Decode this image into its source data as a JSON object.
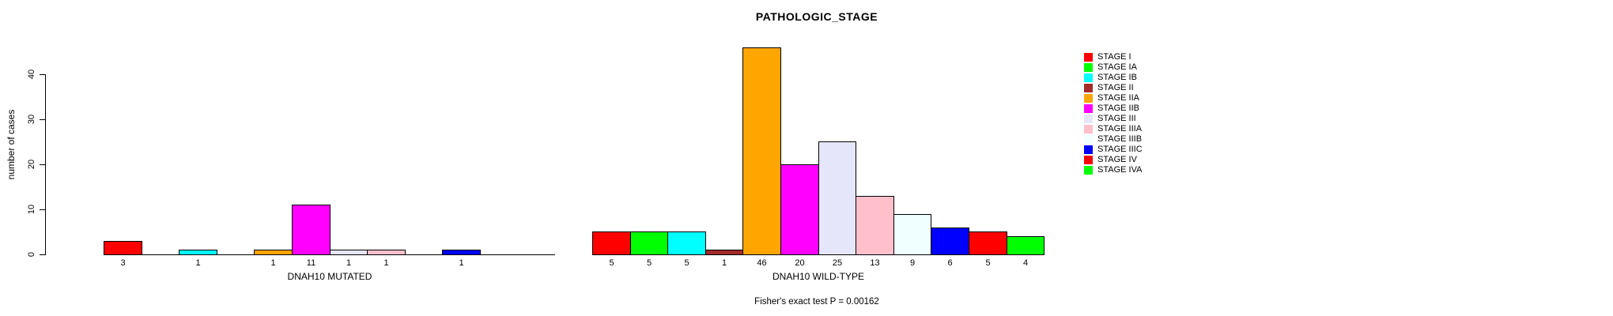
{
  "title": "PATHOLOGIC_STAGE",
  "footer": "Fisher's exact test P = 0.00162",
  "y_axis": {
    "label": "number of cases",
    "ticks": [
      0,
      10,
      20,
      30,
      40
    ]
  },
  "chart_data": {
    "type": "bar",
    "title": "PATHOLOGIC_STAGE",
    "ylabel": "number of cases",
    "ylim": [
      0,
      46
    ],
    "grid": false,
    "legend_position": "right",
    "categories": [
      "STAGE I",
      "STAGE IA",
      "STAGE IB",
      "STAGE II",
      "STAGE IIA",
      "STAGE IIB",
      "STAGE III",
      "STAGE IIIA",
      "STAGE IIIB",
      "STAGE IIIC",
      "STAGE IV",
      "STAGE IVA"
    ],
    "colors": [
      "#FF0000",
      "#00FF00",
      "#00FFFF",
      "#A52A2A",
      "#FFA500",
      "#FF00FF",
      "#E6E6FA",
      "#FFC0CB",
      "#F0FFFF",
      "#0000FF",
      "#FF0000",
      "#00FF00"
    ],
    "series": [
      {
        "name": "DNAH10 MUTATED",
        "values": [
          3,
          0,
          1,
          0,
          1,
          11,
          1,
          1,
          0,
          1,
          0,
          0
        ]
      },
      {
        "name": "DNAH10 WILD-TYPE",
        "values": [
          5,
          5,
          5,
          1,
          46,
          20,
          25,
          13,
          9,
          6,
          5,
          4
        ]
      }
    ],
    "annotation": "Fisher's exact test P = 0.00162"
  },
  "legend": {
    "items": [
      {
        "label": "STAGE I",
        "color": "#FF0000"
      },
      {
        "label": "STAGE IA",
        "color": "#00FF00"
      },
      {
        "label": "STAGE IB",
        "color": "#00FFFF"
      },
      {
        "label": "STAGE II",
        "color": "#A52A2A"
      },
      {
        "label": "STAGE IIA",
        "color": "#FFA500"
      },
      {
        "label": "STAGE IIB",
        "color": "#FF00FF"
      },
      {
        "label": "STAGE III",
        "color": "#E6E6FA"
      },
      {
        "label": "STAGE IIIA",
        "color": "#FFC0CB"
      },
      {
        "label": "STAGE IIIB",
        "color": "#F0FFFF"
      },
      {
        "label": "STAGE IIIC",
        "color": "#0000FF"
      },
      {
        "label": "STAGE IV",
        "color": "#FF0000"
      },
      {
        "label": "STAGE IVA",
        "color": "#00FF00"
      }
    ]
  }
}
